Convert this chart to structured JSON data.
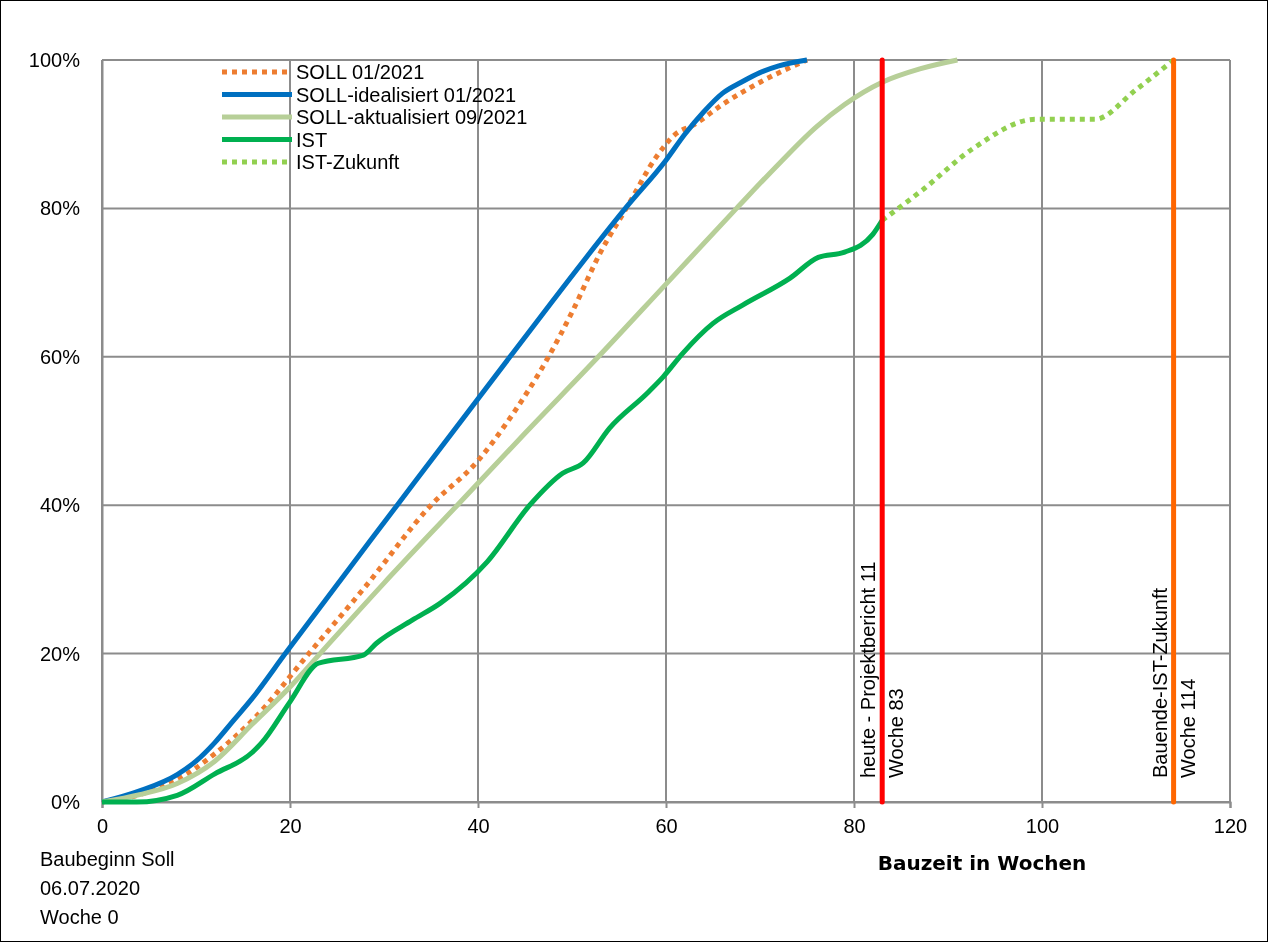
{
  "chart_data": {
    "type": "line",
    "xlabel": "Bauzeit in Wochen",
    "xlim": [
      0,
      120
    ],
    "xticks": [
      0,
      20,
      40,
      60,
      80,
      100,
      120
    ],
    "ylim": [
      0,
      100
    ],
    "yticks": [
      {
        "value": 0,
        "label": "0%"
      },
      {
        "value": 20,
        "label": "20%"
      },
      {
        "value": 40,
        "label": "40%"
      },
      {
        "value": 60,
        "label": "60%"
      },
      {
        "value": 80,
        "label": "80%"
      },
      {
        "value": 100,
        "label": "100%"
      }
    ],
    "grid": true,
    "legend": "top left",
    "marker": "none",
    "series": [
      {
        "name": "SOLL 01/2021",
        "color": "#ed7d31",
        "line_style": "dotted",
        "x": [
          0,
          4,
          8,
          12,
          16,
          22,
          28,
          35,
          40,
          43,
          47.5,
          50,
          53,
          56,
          59,
          61,
          63,
          66,
          70,
          75
        ],
        "values": [
          0,
          1,
          3,
          6.5,
          11,
          20,
          29,
          40,
          46,
          51,
          60,
          66,
          74,
          80.5,
          87,
          90,
          91.3,
          94,
          97,
          100
        ]
      },
      {
        "name": "SOLL-idealisiert 01/2021",
        "color": "#0070c0",
        "line_style": "solid",
        "x": [
          0,
          4,
          8,
          10,
          12,
          14,
          16,
          19.5,
          31.4,
          43.4,
          56,
          60,
          62,
          64,
          66,
          68,
          70,
          72,
          75
        ],
        "values": [
          0,
          1.5,
          3.7,
          5.5,
          8,
          11,
          14,
          20,
          40,
          60,
          80.5,
          86.5,
          90,
          93,
          95.5,
          97,
          98.3,
          99.2,
          100
        ]
      },
      {
        "name": "SOLL-aktualisiert 09/2021",
        "color": "#b7cf98",
        "line_style": "solid",
        "x": [
          0,
          4,
          8,
          12,
          16,
          20,
          23.2,
          30,
          37.8,
          45,
          52.8,
          60,
          67.5,
          72,
          76,
          79,
          83,
          87,
          91
        ],
        "values": [
          0,
          1,
          2.5,
          5.5,
          10.5,
          15.5,
          20,
          29.5,
          40,
          49.7,
          60,
          69.8,
          80,
          86,
          91,
          94,
          97,
          98.8,
          100
        ]
      },
      {
        "name": "IST",
        "color": "#00b050",
        "line_style": "solid",
        "x": [
          0,
          3.7,
          8,
          12,
          16,
          17,
          20,
          23,
          27.8,
          29.2,
          33,
          36,
          41,
          45.5,
          49,
          51.2,
          54,
          58,
          59.7,
          61.8,
          65,
          68.2,
          73.2,
          76.2,
          79,
          82,
          83
        ],
        "values": [
          0,
          0,
          0.9,
          3.8,
          6.7,
          8,
          13.5,
          18.7,
          19.8,
          21.4,
          24.5,
          26.8,
          32.4,
          40,
          44.3,
          45.7,
          50.4,
          55.1,
          57.3,
          60.5,
          64.5,
          67,
          70.6,
          73.4,
          74.1,
          76.5,
          78.4
        ]
      },
      {
        "name": "IST-Zukunft",
        "color": "#92d050",
        "line_style": "dotted",
        "x": [
          83,
          87.3,
          92.7,
          99.3,
          105.6,
          110,
          114
        ],
        "values": [
          78.4,
          82.5,
          88.1,
          92,
          92,
          96,
          100
        ]
      }
    ],
    "ref_lines": [
      {
        "axis": "x",
        "value": 83,
        "label": "heute - Projektbericht 11\nWoche 83",
        "color": "#ff0000"
      },
      {
        "axis": "x",
        "value": 114,
        "label": "Bauende-IST-Zukunft\nWoche 114",
        "color": "#ff6600"
      }
    ],
    "annotations": [
      "Baubeginn Soll\n06.07.2020\nWoche 0"
    ]
  }
}
